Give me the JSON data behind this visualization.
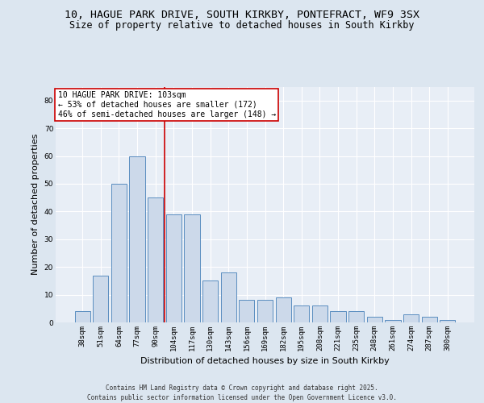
{
  "title1": "10, HAGUE PARK DRIVE, SOUTH KIRKBY, PONTEFRACT, WF9 3SX",
  "title2": "Size of property relative to detached houses in South Kirkby",
  "xlabel": "Distribution of detached houses by size in South Kirkby",
  "ylabel": "Number of detached properties",
  "categories": [
    "38sqm",
    "51sqm",
    "64sqm",
    "77sqm",
    "90sqm",
    "104sqm",
    "117sqm",
    "130sqm",
    "143sqm",
    "156sqm",
    "169sqm",
    "182sqm",
    "195sqm",
    "208sqm",
    "221sqm",
    "235sqm",
    "248sqm",
    "261sqm",
    "274sqm",
    "287sqm",
    "300sqm"
  ],
  "values": [
    4,
    17,
    50,
    60,
    45,
    39,
    39,
    15,
    18,
    8,
    8,
    9,
    6,
    6,
    4,
    4,
    2,
    1,
    3,
    2,
    1
  ],
  "bar_color": "#ccd9ea",
  "bar_edge_color": "#5b8ec0",
  "annotation_text": "10 HAGUE PARK DRIVE: 103sqm\n← 53% of detached houses are smaller (172)\n46% of semi-detached houses are larger (148) →",
  "annotation_box_color": "#ffffff",
  "annotation_box_edge": "#cc0000",
  "vline_x": 4.5,
  "vline_color": "#cc0000",
  "ylim": [
    0,
    85
  ],
  "yticks": [
    0,
    10,
    20,
    30,
    40,
    50,
    60,
    70,
    80
  ],
  "footer": "Contains HM Land Registry data © Crown copyright and database right 2025.\nContains public sector information licensed under the Open Government Licence v3.0.",
  "bg_color": "#dce6f0",
  "plot_bg_color": "#e8eef6",
  "grid_color": "#ffffff",
  "title_fontsize": 9.5,
  "subtitle_fontsize": 8.5,
  "tick_fontsize": 6.5,
  "label_fontsize": 8,
  "annotation_fontsize": 7,
  "footer_fontsize": 5.5
}
